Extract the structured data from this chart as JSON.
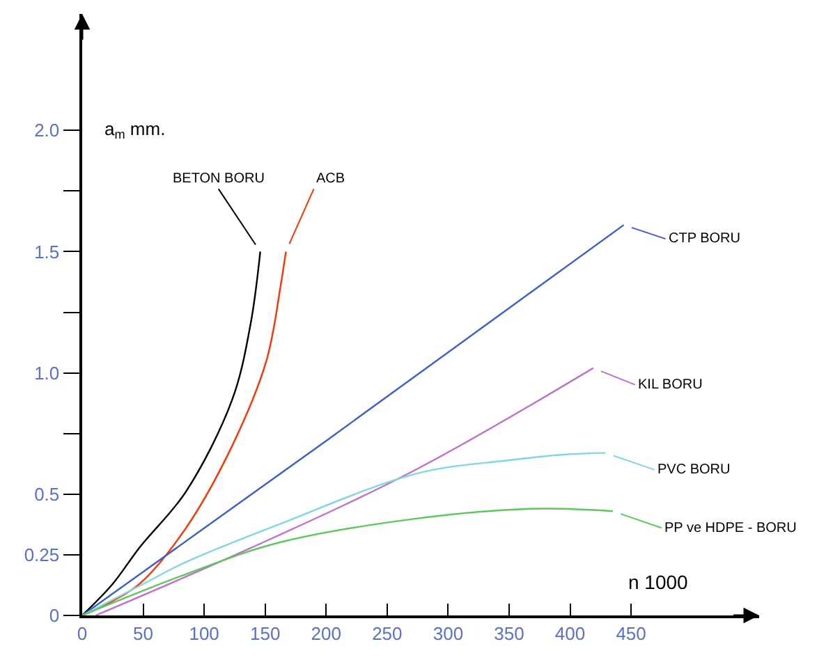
{
  "chart_data": {
    "type": "line",
    "xlabel": "n 1000",
    "ylabel": "a$_{m}$ mm.",
    "legend": "right",
    "xlim": [
      0,
      555
    ],
    "ylim": [
      0,
      2.48
    ],
    "xticks": [
      0,
      50,
      100,
      150,
      200,
      250,
      300,
      350,
      400,
      450
    ],
    "yticks": [
      0,
      0.25,
      0.5,
      {
        "value": 0.75,
        "label": null
      },
      {
        "value": 1,
        "label": "1.0"
      },
      {
        "value": 1.25,
        "label": null
      },
      1.5,
      {
        "value": 1.75,
        "label": null
      },
      {
        "value": 2,
        "label": "2.0"
      }
    ],
    "series": [
      {
        "name": "BETON BORU",
        "color": "#000000",
        "x": [
          0,
          25,
          47,
          85,
          123,
          138,
          146
        ],
        "values": [
          0,
          0.13,
          0.28,
          0.51,
          0.89,
          1.2,
          1.5
        ]
      },
      {
        "name": "ACB",
        "color": "#ff3300",
        "x": [
          0,
          25,
          47,
          85,
          123,
          151,
          163,
          167
        ],
        "values": [
          0,
          0.06,
          0.13,
          0.36,
          0.7,
          1.05,
          1.37,
          1.5
        ]
      },
      {
        "name": "CTP BORU",
        "color": "#3b5bd6",
        "x": [
          0,
          200,
          444
        ],
        "values": [
          0,
          0.72,
          1.61
        ]
      },
      {
        "name": "KIL BORU",
        "color": "#c070d0",
        "x": [
          11,
          139,
          275,
          419
        ],
        "values": [
          0,
          0.28,
          0.605,
          1.02
        ]
      },
      {
        "name": "PVC BORU",
        "color": "#7fd8e0",
        "x": [
          0,
          50,
          85,
          161,
          275,
          350,
          400,
          429
        ],
        "values": [
          0,
          0.13,
          0.22,
          0.375,
          0.586,
          0.64,
          0.665,
          0.67
        ]
      },
      {
        "name": "PP ve HDPE - BORU",
        "color": "#5cc85c",
        "x": [
          0,
          85,
          161,
          275,
          370,
          435
        ],
        "values": [
          0,
          0.17,
          0.3,
          0.4,
          0.44,
          0.43
        ]
      }
    ]
  }
}
